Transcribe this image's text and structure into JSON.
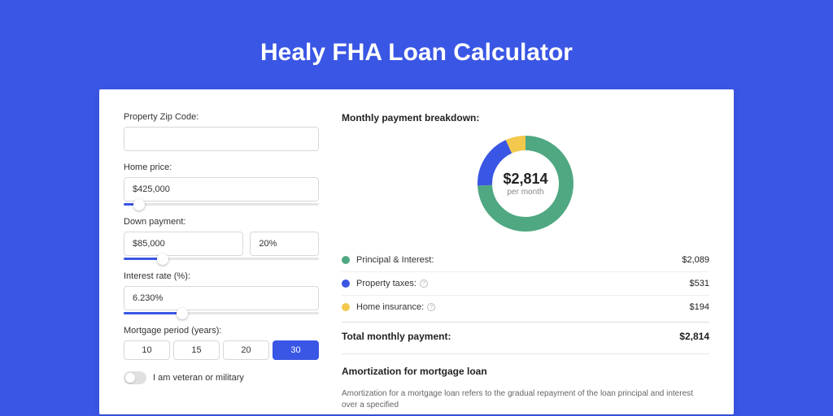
{
  "page": {
    "title": "Healy FHA Loan Calculator",
    "background_color": "#3a56e4",
    "card_background": "#ffffff"
  },
  "form": {
    "zip": {
      "label": "Property Zip Code:",
      "value": ""
    },
    "home_price": {
      "label": "Home price:",
      "value": "$425,000",
      "slider_percent": 8
    },
    "down_payment": {
      "label": "Down payment:",
      "amount": "$85,000",
      "percent": "20%",
      "slider_percent": 20
    },
    "interest_rate": {
      "label": "Interest rate (%):",
      "value": "6.230%",
      "slider_percent": 30
    },
    "period": {
      "label": "Mortgage period (years):",
      "options": [
        "10",
        "15",
        "20",
        "30"
      ],
      "selected": "30"
    },
    "veteran": {
      "label": "I am veteran or military",
      "value": false
    }
  },
  "breakdown": {
    "title": "Monthly payment breakdown:",
    "donut": {
      "center_value": "$2,814",
      "center_sub": "per month",
      "segments": [
        {
          "name": "principal_interest",
          "value": 2089,
          "percent": 74.2,
          "color": "#4fa882"
        },
        {
          "name": "property_taxes",
          "value": 531,
          "percent": 18.9,
          "color": "#3a56e4"
        },
        {
          "name": "home_insurance",
          "value": 194,
          "percent": 6.9,
          "color": "#f2c94c"
        }
      ],
      "stroke_width": 18
    },
    "items": [
      {
        "label": "Principal & Interest:",
        "value": "$2,089",
        "color": "#4fa882",
        "has_info": false
      },
      {
        "label": "Property taxes:",
        "value": "$531",
        "color": "#3a56e4",
        "has_info": true
      },
      {
        "label": "Home insurance:",
        "value": "$194",
        "color": "#f2c94c",
        "has_info": true
      }
    ],
    "total": {
      "label": "Total monthly payment:",
      "value": "$2,814"
    }
  },
  "amortization": {
    "title": "Amortization for mortgage loan",
    "text": "Amortization for a mortgage loan refers to the gradual repayment of the loan principal and interest over a specified"
  }
}
